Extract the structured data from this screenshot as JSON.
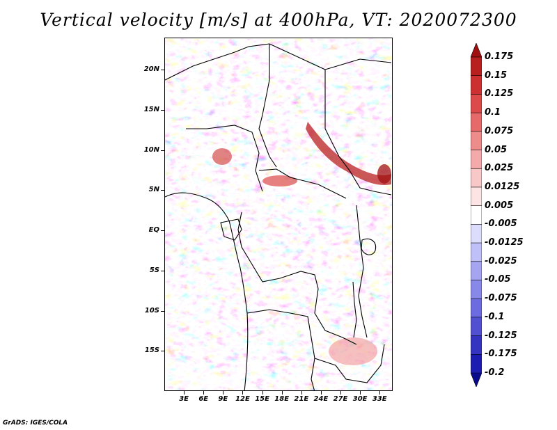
{
  "title": "Vertical velocity [m/s] at 400hPa, VT: 2020072300",
  "footer": "GrADS: IGES/COLA",
  "map": {
    "lon_range": [
      0,
      35
    ],
    "lat_range": [
      -20,
      24
    ],
    "lat_ticks": [
      "20N",
      "15N",
      "10N",
      "5N",
      "EQ",
      "5S",
      "10S",
      "15S"
    ],
    "lon_ticks": [
      "3E",
      "6E",
      "9E",
      "12E",
      "15E",
      "18E",
      "21E",
      "24E",
      "27E",
      "30E",
      "33E"
    ],
    "lat_tick_values": [
      20,
      15,
      10,
      5,
      0,
      -5,
      -10,
      -15
    ],
    "lon_tick_values": [
      3,
      6,
      9,
      12,
      15,
      18,
      21,
      24,
      27,
      30,
      33
    ],
    "field": "vertical velocity",
    "units": "m/s",
    "level": "400hPa"
  },
  "colorbar": {
    "labels": [
      "0.175",
      "0.15",
      "0.125",
      "0.1",
      "0.075",
      "0.05",
      "0.025",
      "0.0125",
      "0.005",
      "-0.005",
      "-0.0125",
      "-0.025",
      "-0.05",
      "-0.075",
      "-0.1",
      "-0.125",
      "-0.175",
      "-0.2"
    ],
    "colors": [
      "#a01010",
      "#b82020",
      "#cc3030",
      "#dc4a4a",
      "#e66a6a",
      "#ee8c8c",
      "#f4aaaa",
      "#f8c8c8",
      "#fce4e4",
      "#ffffff",
      "#dcdcfc",
      "#c0c0f8",
      "#a4a4f0",
      "#8888e8",
      "#6c6ce0",
      "#5050d0",
      "#3434c0",
      "#1c1cb0",
      "#0a0a8c"
    ]
  },
  "colors": {
    "background": "#ffffff",
    "borders": "#000000"
  }
}
